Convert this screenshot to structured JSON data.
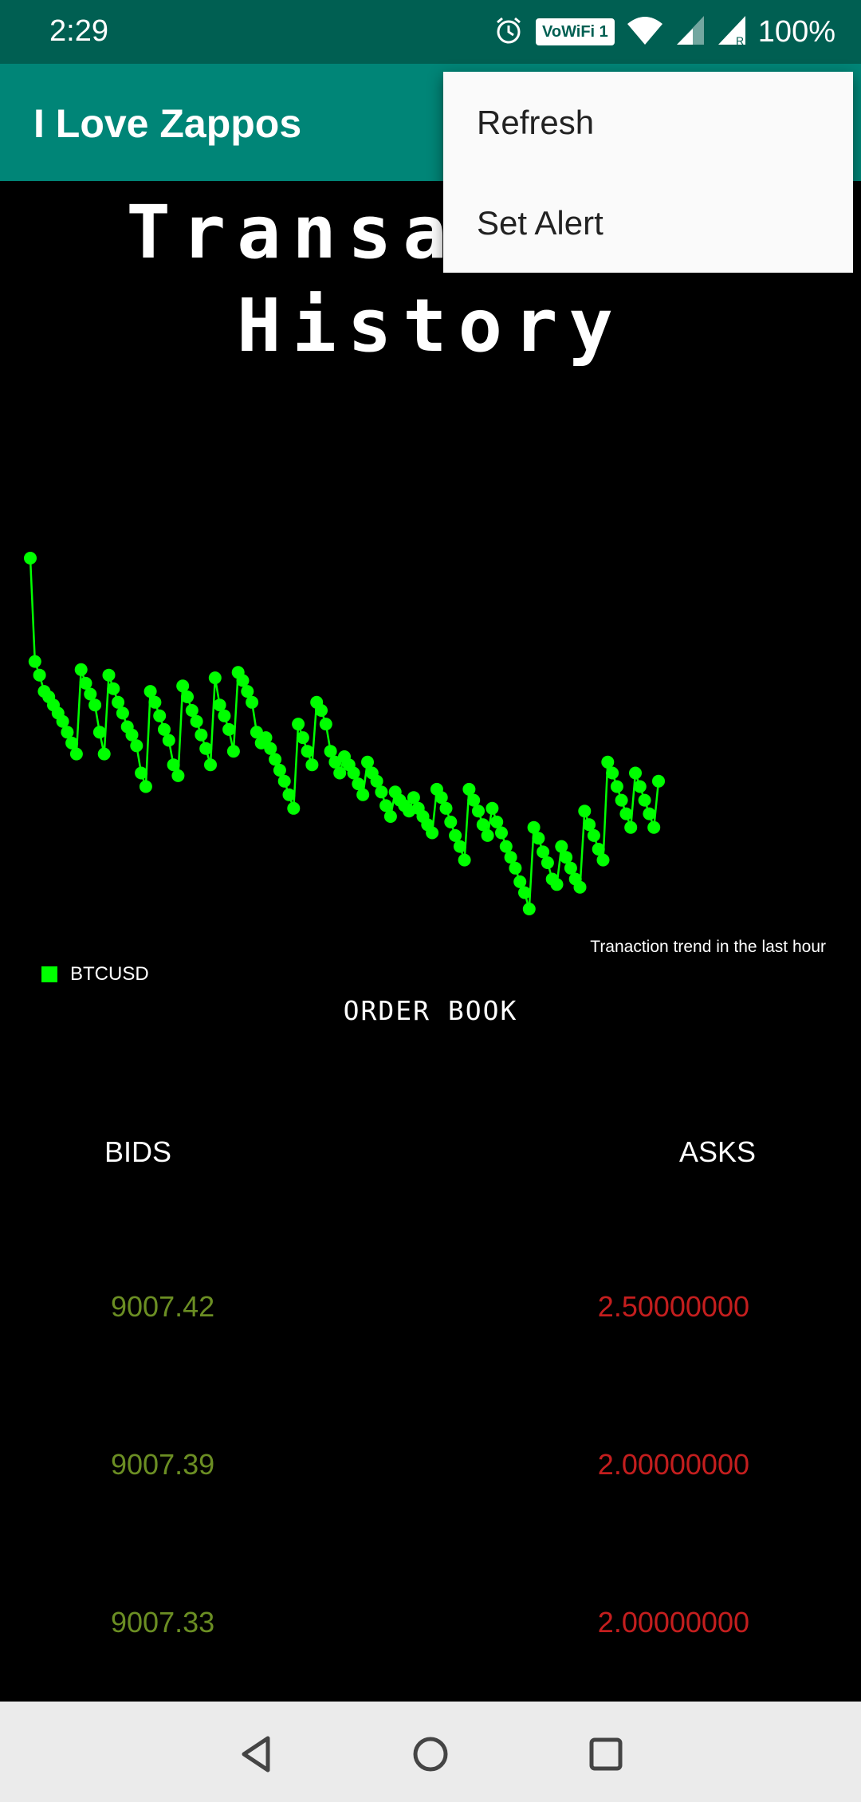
{
  "status_bar": {
    "time": "2:29",
    "wifi_badge": "VoWiFi 1",
    "battery": "100%",
    "icons": [
      "alarm-icon",
      "wifi-icon",
      "signal-icon",
      "roaming-signal-icon"
    ]
  },
  "app_bar": {
    "title": "I Love Zappos"
  },
  "overflow_menu": {
    "items": [
      {
        "label": "Refresh"
      },
      {
        "label": "Set Alert"
      }
    ]
  },
  "page": {
    "heading_line1": "Transaction",
    "heading_line2": "History"
  },
  "chart_data": {
    "type": "line",
    "title": "",
    "description": "Tranaction trend in the last hour",
    "series": [
      {
        "name": "BTCUSD",
        "color": "#00ff00",
        "y": [
          9019.6,
          9015.8,
          9015.3,
          9014.7,
          9014.5,
          9014.2,
          9013.9,
          9013.6,
          9013.2,
          9012.8,
          9012.4,
          9015.5,
          9015.0,
          9014.6,
          9014.2,
          9013.2,
          9012.4,
          9015.3,
          9014.8,
          9014.3,
          9013.9,
          9013.4,
          9013.1,
          9012.7,
          9011.7,
          9011.2,
          9014.7,
          9014.3,
          9013.8,
          9013.3,
          9012.9,
          9012.0,
          9011.6,
          9014.9,
          9014.5,
          9014.0,
          9013.6,
          9013.1,
          9012.6,
          9012.0,
          9015.2,
          9014.2,
          9013.8,
          9013.3,
          9012.5,
          9015.4,
          9015.1,
          9014.7,
          9014.3,
          9013.2,
          9012.8,
          9013.0,
          9012.6,
          9012.2,
          9011.8,
          9011.4,
          9010.9,
          9010.4,
          9013.5,
          9013.0,
          9012.5,
          9012.0,
          9014.3,
          9014.0,
          9013.5,
          9012.5,
          9012.1,
          9011.7,
          9012.3,
          9012.0,
          9011.7,
          9011.3,
          9010.9,
          9012.1,
          9011.7,
          9011.4,
          9011.0,
          9010.5,
          9010.1,
          9011.0,
          9010.7,
          9010.5,
          9010.3,
          9010.8,
          9010.4,
          9010.1,
          9009.8,
          9009.5,
          9011.1,
          9010.8,
          9010.4,
          9009.9,
          9009.4,
          9009.0,
          9008.5,
          9011.1,
          9010.7,
          9010.3,
          9009.8,
          9009.4,
          9010.4,
          9009.9,
          9009.5,
          9009.0,
          9008.6,
          9008.2,
          9007.7,
          9007.3,
          9006.7,
          9009.7,
          9009.3,
          9008.8,
          9008.4,
          9007.8,
          9007.6,
          9009.0,
          9008.6,
          9008.2,
          9007.8,
          9007.5,
          9010.3,
          9009.8,
          9009.4,
          9008.9,
          9008.5,
          9012.1,
          9011.7,
          9011.2,
          9010.7,
          9010.2,
          9009.7,
          9011.7,
          9011.2,
          9010.7,
          9010.2,
          9009.7,
          9011.4
        ]
      }
    ],
    "xlabel": "",
    "ylabel": "",
    "grid": false,
    "legend": "bottom-left"
  },
  "order_book": {
    "title": "ORDER BOOK",
    "bids_header": "BIDS",
    "asks_header": "ASKS",
    "rows": [
      {
        "bid": "9007.42",
        "ask": "2.50000000"
      },
      {
        "bid": "9007.39",
        "ask": "2.00000000"
      },
      {
        "bid": "9007.33",
        "ask": "2.00000000"
      }
    ]
  },
  "nav_bar": {
    "icons": [
      "back-icon",
      "home-icon",
      "recents-icon"
    ]
  }
}
